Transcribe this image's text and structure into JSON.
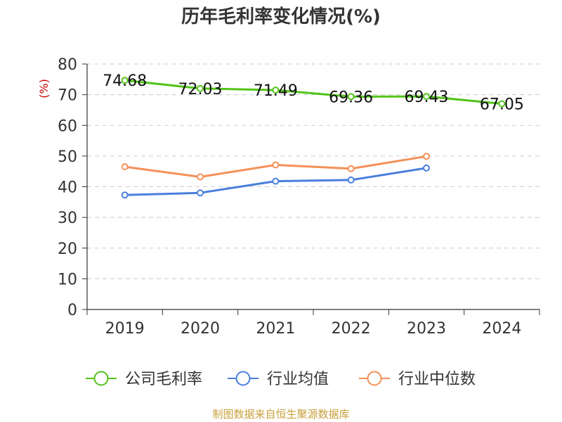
{
  "chart_data": {
    "type": "line",
    "title": "历年毛利率变化情况(%)",
    "ylabel": "(%)",
    "xlabel": "",
    "categories": [
      "2019",
      "2020",
      "2021",
      "2022",
      "2023",
      "2024"
    ],
    "ylim": [
      0,
      80
    ],
    "yticks": [
      0,
      10,
      20,
      30,
      40,
      50,
      60,
      70,
      80
    ],
    "grid": true,
    "legend_position": "bottom",
    "series": [
      {
        "name": "公司毛利率",
        "color": "#52c41a",
        "values": [
          74.68,
          72.03,
          71.49,
          69.36,
          69.43,
          67.05
        ],
        "data_labels": [
          "74.68",
          "72.03",
          "71.49",
          "69.36",
          "69.43",
          "67.05"
        ]
      },
      {
        "name": "行业均值",
        "color": "#4a7fdc",
        "values": [
          37.3,
          38.0,
          41.8,
          42.2,
          46.1,
          null
        ]
      },
      {
        "name": "行业中位数",
        "color": "#f59058",
        "values": [
          46.5,
          43.2,
          47.1,
          45.9,
          49.9,
          null
        ]
      }
    ]
  },
  "source_text": "制图数据来自恒生聚源数据库",
  "colors": {
    "axis": "#333333",
    "grid": "#cccccc",
    "ylabel": "#cc0000",
    "source": "#c8a03c"
  }
}
